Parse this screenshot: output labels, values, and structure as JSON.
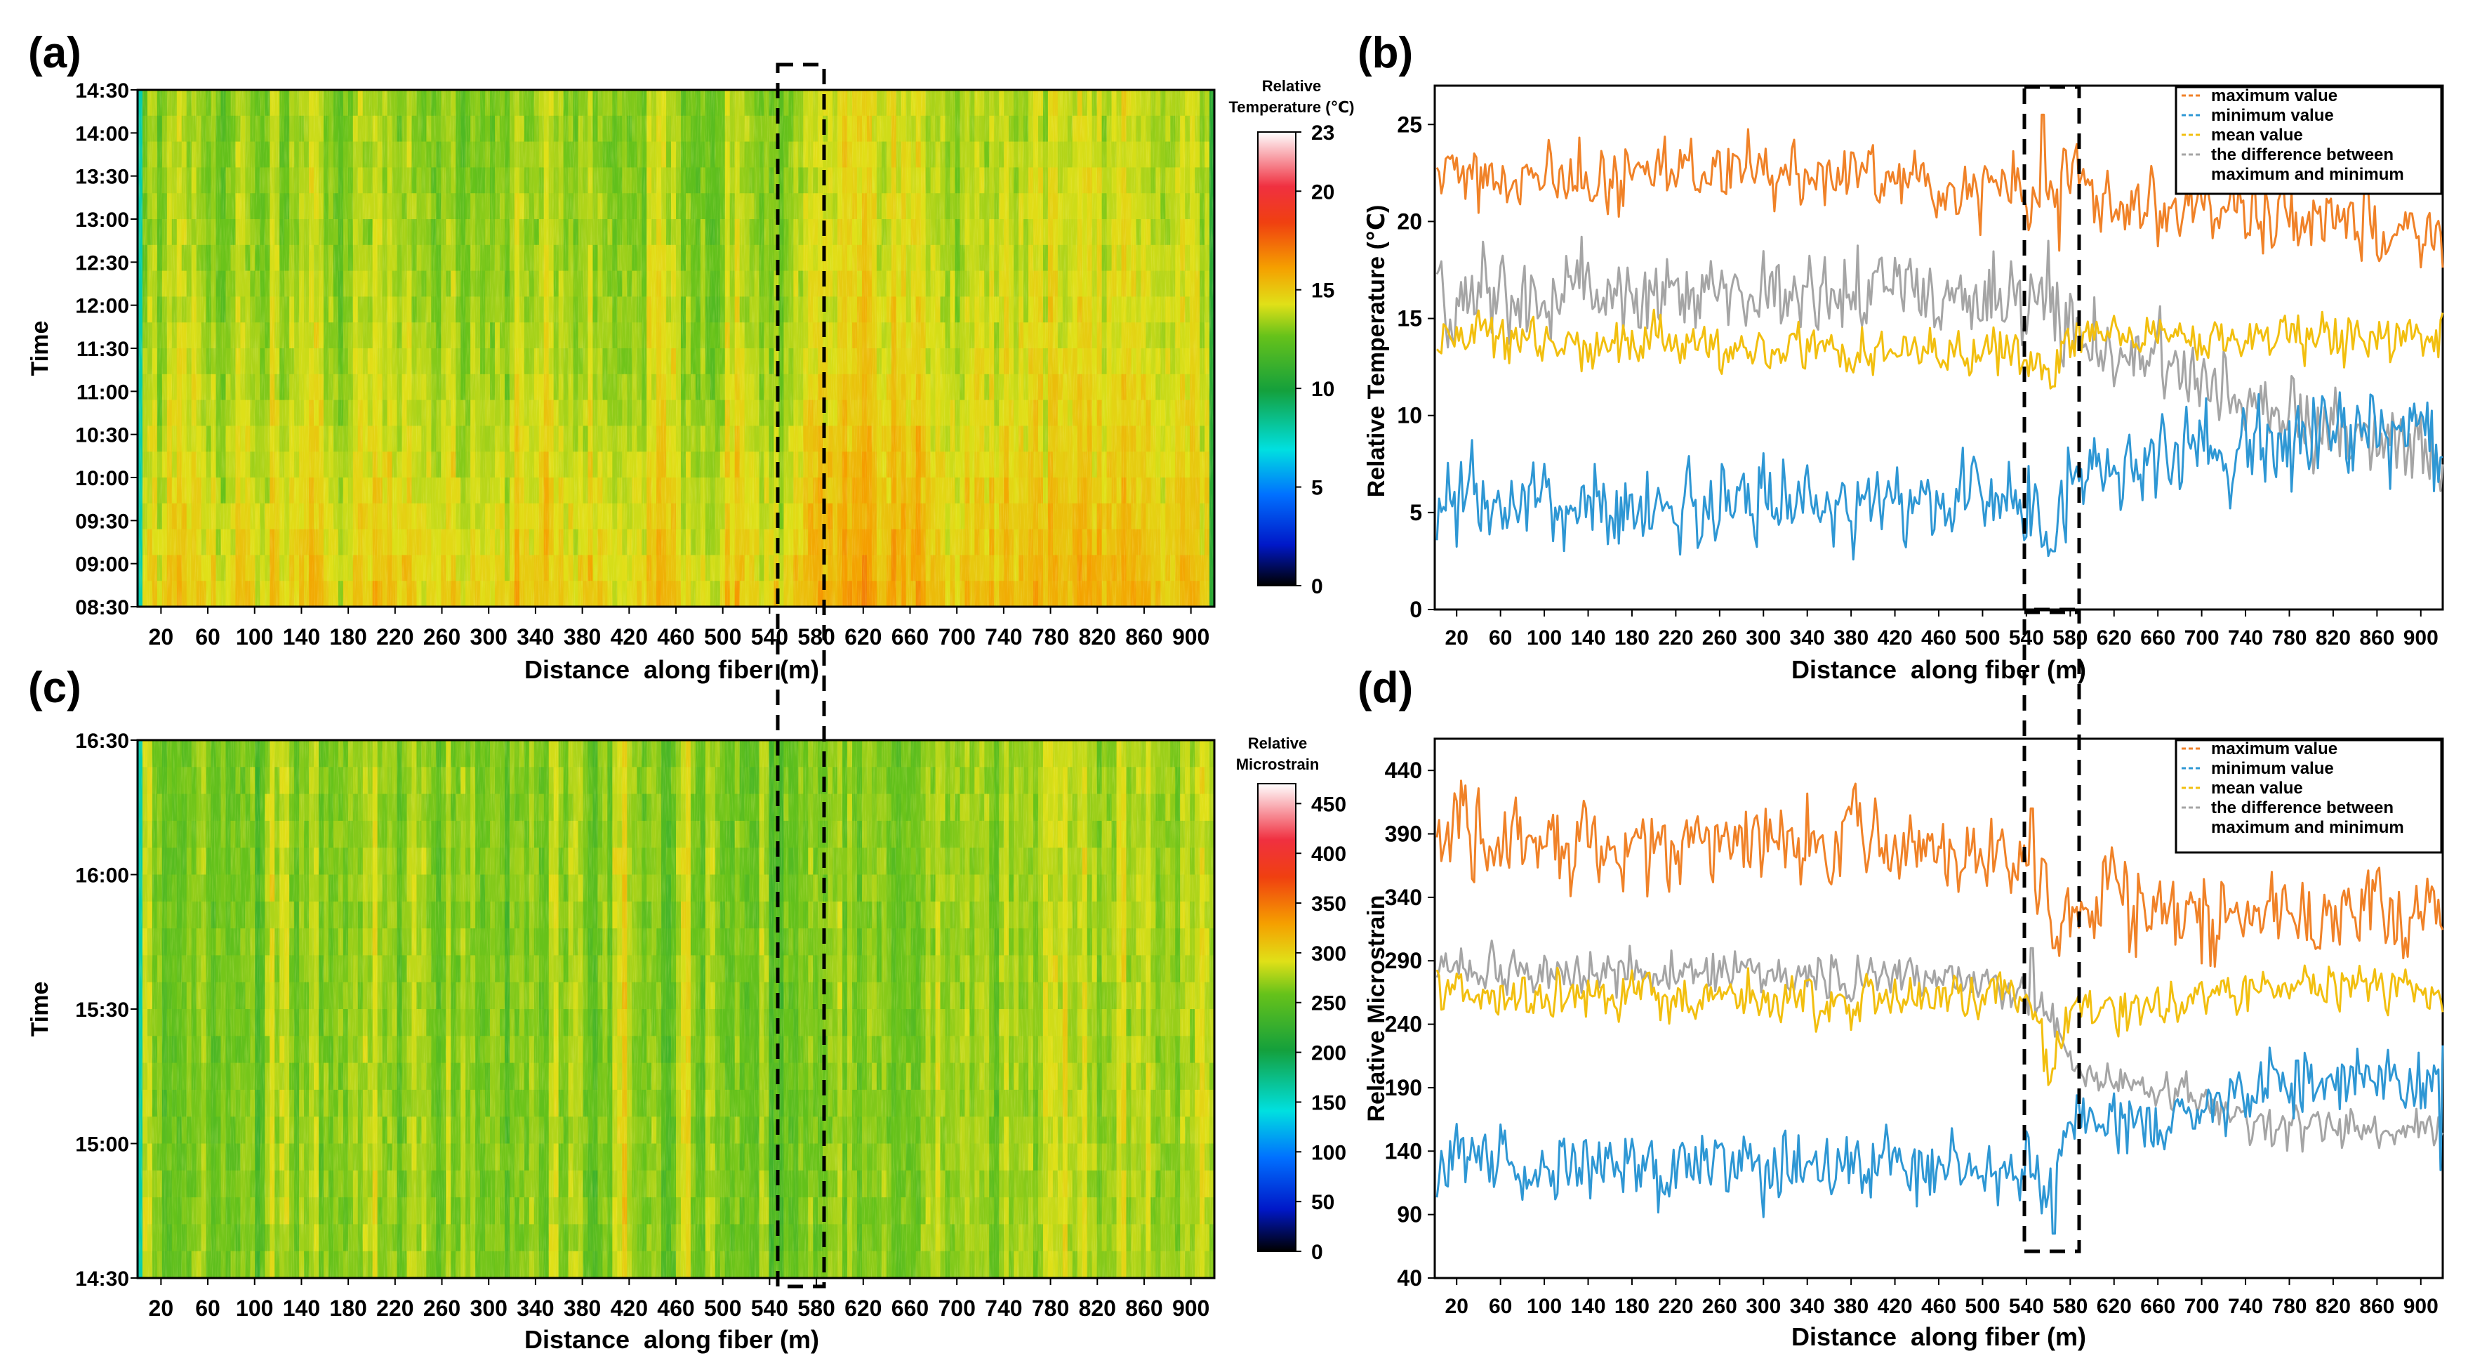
{
  "panel_labels": {
    "a": "(a)",
    "b": "(b)",
    "c": "(c)",
    "d": "(d)"
  },
  "x_axis_title": "Distance  along fiber (m)",
  "x_ticks": [
    "20",
    "60",
    "100",
    "140",
    "180",
    "220",
    "260",
    "300",
    "340",
    "380",
    "420",
    "460",
    "500",
    "540",
    "580",
    "620",
    "660",
    "700",
    "740",
    "780",
    "820",
    "860",
    "900"
  ],
  "x_tick_values": [
    20,
    60,
    100,
    140,
    180,
    220,
    260,
    300,
    340,
    380,
    420,
    460,
    500,
    540,
    580,
    620,
    660,
    700,
    740,
    780,
    820,
    860,
    900
  ],
  "x_range_m": [
    0,
    920
  ],
  "highlight_window_m": [
    540,
    580
  ],
  "colors": {
    "maximum": "#f08228",
    "minimum": "#2e97d4",
    "mean": "#f2bf0f",
    "difference": "#a5a5a5",
    "frame": "#000000"
  },
  "chart_data": [
    {
      "id": "a",
      "type": "heatmap",
      "quantity": "temperature",
      "ylabel": "Time",
      "y_ticks": [
        "14:30",
        "14:00",
        "13:30",
        "13:00",
        "12:30",
        "12:00",
        "11:30",
        "11:00",
        "10:30",
        "10:00",
        "09:30",
        "09:00",
        "08:30"
      ],
      "colorbar": {
        "title_line1": "Relative",
        "title_line2": "Temperature (℃)",
        "range": [
          0,
          23
        ],
        "ticks": [
          "23",
          "20",
          "15",
          "10",
          "5",
          "0"
        ],
        "tick_values": [
          23,
          20,
          15,
          10,
          5,
          0
        ]
      }
    },
    {
      "id": "b",
      "type": "line",
      "ylabel": "Relative Temperature (℃)",
      "ylim": [
        0,
        27
      ],
      "y_ticks": [
        "25",
        "20",
        "15",
        "10",
        "5",
        "0"
      ],
      "y_tick_values": [
        25,
        20,
        15,
        10,
        5,
        0
      ],
      "legend": {
        "position": "top-right",
        "entries": [
          "maximum value",
          "minimum value",
          "mean value",
          "the difference between",
          "maximum and minimum"
        ]
      },
      "series": [
        {
          "name": "maximum value",
          "color_key": "maximum",
          "x": [
            0,
            100,
            200,
            300,
            400,
            500,
            540,
            560,
            580,
            600,
            650,
            700,
            750,
            800,
            850,
            900,
            920
          ],
          "y": [
            22.5,
            22.4,
            22.3,
            22.5,
            22.2,
            21.8,
            22.0,
            21.5,
            22.0,
            21.5,
            21.0,
            20.8,
            20.5,
            20.3,
            20.0,
            19.5,
            18.8
          ],
          "noise": 1.2,
          "spikes": [
            [
              555,
              25.5
            ],
            [
              570,
              18.5
            ]
          ]
        },
        {
          "name": "minimum value",
          "color_key": "minimum",
          "x": [
            0,
            100,
            200,
            300,
            400,
            500,
            540,
            560,
            580,
            600,
            650,
            700,
            750,
            800,
            850,
            900,
            920
          ],
          "y": [
            5.5,
            5.4,
            5.0,
            5.2,
            5.0,
            5.3,
            5.5,
            4.0,
            6.5,
            7.2,
            7.5,
            8.0,
            8.5,
            9.0,
            9.0,
            9.0,
            9.0
          ],
          "noise": 1.5,
          "spikes": [
            [
              565,
              3.0
            ]
          ]
        },
        {
          "name": "mean value",
          "color_key": "mean",
          "x": [
            0,
            100,
            200,
            300,
            400,
            500,
            540,
            560,
            580,
            600,
            650,
            700,
            750,
            800,
            850,
            900,
            920
          ],
          "y": [
            14.0,
            13.8,
            13.5,
            13.5,
            13.4,
            13.3,
            13.5,
            12.0,
            14.0,
            14.0,
            14.1,
            14.0,
            14.2,
            14.2,
            14.0,
            14.0,
            14.0
          ],
          "noise": 0.8,
          "spikes": [
            [
              565,
              11.5
            ]
          ]
        },
        {
          "name": "the difference between maximum and minimum",
          "color_key": "difference",
          "x": [
            0,
            100,
            200,
            300,
            400,
            500,
            540,
            560,
            580,
            600,
            650,
            700,
            750,
            800,
            850,
            900,
            920
          ],
          "y": [
            16.0,
            16.3,
            16.2,
            16.3,
            16.3,
            16.0,
            16.0,
            16.5,
            15.0,
            13.5,
            13.0,
            11.5,
            10.5,
            9.5,
            9.0,
            8.5,
            8.0
          ],
          "noise": 1.4,
          "spikes": [
            [
              560,
              19.0
            ]
          ]
        }
      ]
    },
    {
      "id": "c",
      "type": "heatmap",
      "quantity": "strain",
      "ylabel": "Time",
      "y_ticks": [
        "16:30",
        "16:00",
        "15:30",
        "15:00",
        "14:30"
      ],
      "colorbar": {
        "title_line1": "Relative",
        "title_line2": "Microstrain",
        "range": [
          0,
          470
        ],
        "ticks": [
          "450",
          "400",
          "350",
          "300",
          "250",
          "200",
          "150",
          "100",
          "50",
          "0"
        ],
        "tick_values": [
          450,
          400,
          350,
          300,
          250,
          200,
          150,
          100,
          50,
          0
        ]
      }
    },
    {
      "id": "d",
      "type": "line",
      "ylabel": "Relative Microstrain",
      "ylim": [
        40,
        465
      ],
      "y_ticks": [
        "440",
        "390",
        "340",
        "290",
        "240",
        "190",
        "140",
        "90",
        "40"
      ],
      "y_tick_values": [
        440,
        390,
        340,
        290,
        240,
        190,
        140,
        90,
        40
      ],
      "legend": {
        "position": "top-right",
        "entries": [
          "maximum value",
          "minimum value",
          "mean value",
          "the difference between",
          "maximum and minimum"
        ]
      },
      "series": [
        {
          "name": "maximum value",
          "color_key": "maximum",
          "x": [
            0,
            100,
            200,
            300,
            400,
            500,
            540,
            560,
            580,
            600,
            650,
            700,
            750,
            800,
            850,
            900,
            920
          ],
          "y": [
            395,
            385,
            380,
            385,
            380,
            375,
            378,
            330,
            340,
            345,
            330,
            325,
            325,
            330,
            330,
            330,
            325
          ],
          "noise": 22,
          "spikes": [
            [
              545,
              410
            ],
            [
              565,
              300
            ]
          ]
        },
        {
          "name": "minimum value",
          "color_key": "minimum",
          "x": [
            0,
            100,
            200,
            300,
            400,
            500,
            540,
            560,
            580,
            600,
            650,
            700,
            750,
            800,
            850,
            900,
            920
          ],
          "y": [
            130,
            128,
            125,
            125,
            125,
            125,
            128,
            105,
            150,
            165,
            165,
            170,
            185,
            195,
            195,
            200,
            200
          ],
          "noise": 18,
          "spikes": [
            [
              565,
              75
            ],
            [
              918,
              125
            ]
          ]
        },
        {
          "name": "mean value",
          "color_key": "mean",
          "x": [
            0,
            100,
            200,
            300,
            400,
            500,
            540,
            560,
            580,
            600,
            650,
            700,
            750,
            800,
            850,
            900,
            920
          ],
          "y": [
            265,
            262,
            262,
            262,
            258,
            262,
            268,
            215,
            250,
            255,
            255,
            260,
            270,
            270,
            270,
            268,
            270
          ],
          "noise": 12,
          "spikes": [
            [
              565,
              205
            ]
          ]
        },
        {
          "name": "the difference between maximum and minimum",
          "color_key": "difference",
          "x": [
            0,
            100,
            200,
            300,
            400,
            500,
            540,
            560,
            580,
            600,
            650,
            700,
            750,
            800,
            850,
            900,
            920
          ],
          "y": [
            285,
            280,
            280,
            280,
            275,
            270,
            265,
            245,
            210,
            195,
            190,
            180,
            160,
            160,
            160,
            160,
            158
          ],
          "noise": 12,
          "spikes": [
            [
              545,
              300
            ]
          ]
        }
      ]
    }
  ]
}
